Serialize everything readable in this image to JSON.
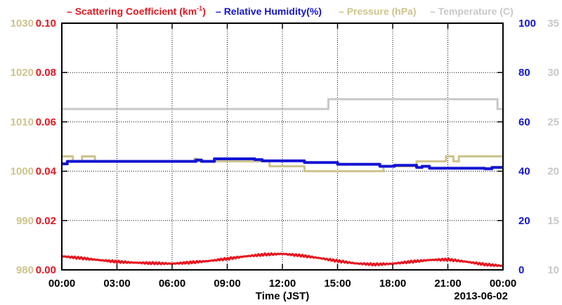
{
  "chart_data": {
    "type": "line",
    "legend": [
      {
        "name": "Scattering Coefficient (km",
        "superscript": "-1",
        "suffix": ")",
        "color": "#e8141e"
      },
      {
        "name": "Relative Humidity(%)",
        "color": "#1414d2"
      },
      {
        "name": "Pressure (hPa)",
        "color": "#cdc38c"
      },
      {
        "name": "Temperature (C)",
        "color": "#c8c8c8"
      }
    ],
    "xlabel": "Time (JST)",
    "date_label": "2013-06-02",
    "x_ticks": [
      "00:00",
      "03:00",
      "06:00",
      "09:00",
      "12:00",
      "15:00",
      "18:00",
      "21:00",
      "00:00"
    ],
    "xlim": [
      0,
      24
    ],
    "grid": true,
    "axes": {
      "pressure": {
        "ylim": [
          980,
          1030
        ],
        "ticks": [
          "980",
          "990",
          "1000",
          "1010",
          "1020",
          "1030"
        ],
        "color": "#cdc38c",
        "side": "left-outer"
      },
      "scattering": {
        "ylim": [
          0,
          0.1
        ],
        "ticks": [
          "0.00",
          "0.02",
          "0.04",
          "0.06",
          "0.08",
          "0.10"
        ],
        "color": "#e8141e",
        "side": "left-inner"
      },
      "humidity": {
        "ylim": [
          0,
          100
        ],
        "ticks": [
          "0",
          "20",
          "40",
          "60",
          "80",
          "100"
        ],
        "color": "#1414d2",
        "side": "right-inner"
      },
      "temperature": {
        "ylim": [
          10,
          35
        ],
        "ticks": [
          "10",
          "15",
          "20",
          "25",
          "30",
          "35"
        ],
        "color": "#c8c8c8",
        "side": "right-outer"
      }
    },
    "series": [
      {
        "name": "Temperature (C)",
        "axis": "temperature",
        "color": "#c8c8c8",
        "step": true,
        "x": [
          0,
          14.5,
          23.7,
          24
        ],
        "y": [
          26.3,
          27.3,
          26.3,
          26.3
        ]
      },
      {
        "name": "Pressure (hPa)",
        "axis": "pressure",
        "color": "#cdc38c",
        "step": true,
        "x": [
          0,
          0.4,
          0.6,
          1.1,
          1.8,
          2.0,
          7.2,
          7.4,
          8.3,
          10.8,
          11.3,
          12.2,
          13.2,
          17.5,
          18.8,
          19.3,
          20.5,
          20.9,
          21.3,
          21.6,
          24
        ],
        "y": [
          1003,
          1003,
          1002,
          1003,
          1002,
          1002,
          1002.5,
          1002,
          1002,
          1002,
          1001,
          1001,
          1000,
          1001,
          1001,
          1002,
          1002,
          1003,
          1002,
          1003,
          1003
        ]
      },
      {
        "name": "Relative Humidity(%)",
        "axis": "humidity",
        "color": "#1414d2",
        "step": true,
        "x": [
          0,
          0.3,
          7.3,
          7.6,
          8.1,
          8.3,
          10.5,
          10.9,
          12.8,
          13.2,
          14.5,
          15.0,
          16.0,
          17.3,
          18.1,
          19.3,
          19.6,
          20.0,
          23.0,
          23.4,
          24
        ],
        "y": [
          43,
          44,
          44.5,
          44,
          44,
          45,
          44.7,
          44.2,
          44.2,
          43.5,
          43.5,
          42.8,
          42.8,
          42,
          42.4,
          41.5,
          42,
          41.2,
          41,
          41.5,
          41.5
        ]
      },
      {
        "name": "Scattering Coefficient (km-1)",
        "axis": "scattering",
        "color": "#e8141e",
        "step": false,
        "x": [
          0,
          1,
          2,
          3,
          4,
          5,
          6,
          7,
          8,
          9,
          10,
          11,
          12,
          13,
          14,
          15,
          16,
          17,
          18,
          19,
          20,
          21,
          22,
          23,
          24
        ],
        "y": [
          0.0055,
          0.0048,
          0.004,
          0.0033,
          0.0029,
          0.0027,
          0.0025,
          0.003,
          0.0036,
          0.0045,
          0.0055,
          0.0062,
          0.0065,
          0.0058,
          0.0048,
          0.0036,
          0.0026,
          0.0022,
          0.0025,
          0.0033,
          0.004,
          0.0042,
          0.0033,
          0.0022,
          0.0016
        ]
      }
    ]
  }
}
